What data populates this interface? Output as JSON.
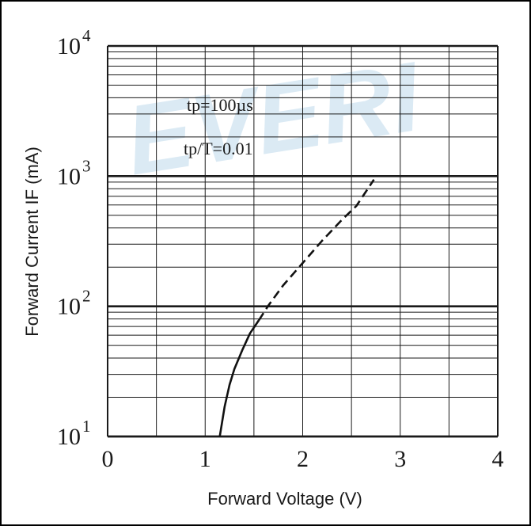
{
  "watermark": "EVERI",
  "chart_data": {
    "type": "line",
    "title": "",
    "xlabel": "Forward Voltage (V)",
    "ylabel": "Forward Current IF (mA)",
    "xlim": [
      0,
      4
    ],
    "ylim": [
      10,
      10000
    ],
    "y_scale": "log",
    "grid": true,
    "x_ticks": [
      "0",
      "1",
      "2",
      "3",
      "4"
    ],
    "y_ticks": [
      {
        "value": 10,
        "base": "10",
        "exp": "1"
      },
      {
        "value": 100,
        "base": "10",
        "exp": "2"
      },
      {
        "value": 1000,
        "base": "10",
        "exp": "3"
      },
      {
        "value": 10000,
        "base": "10",
        "exp": "4"
      }
    ],
    "annotations": [
      "tp=100µs",
      "tp/T=0.01"
    ],
    "series": [
      {
        "style": "solid",
        "x": [
          1.15,
          1.2,
          1.25,
          1.3,
          1.38,
          1.46,
          1.55
        ],
        "y": [
          10,
          17,
          25,
          33,
          46,
          62,
          78
        ]
      },
      {
        "style": "dashed",
        "x": [
          1.55,
          1.65,
          1.8,
          2.0,
          2.2,
          2.4,
          2.55,
          2.73
        ],
        "y": [
          78,
          102,
          145,
          215,
          320,
          460,
          590,
          940
        ]
      }
    ],
    "colors": {
      "curve": "#111111",
      "grid": "#1a1a1a",
      "watermark": "#cfe3f1"
    }
  }
}
